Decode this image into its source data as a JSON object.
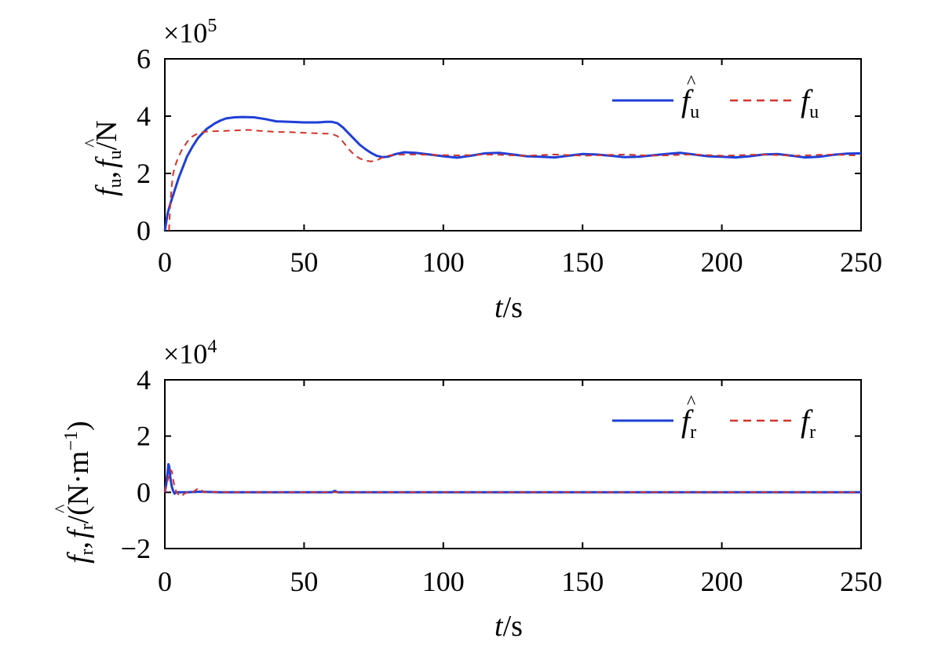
{
  "chart_data": [
    {
      "type": "line",
      "multiplier_base": "×10",
      "multiplier_exp": "5",
      "xlabel_var": "t",
      "xlabel_unit": "/s",
      "ylabel": {
        "f1": "f",
        "s1": "u",
        "comma": ",",
        "f2": "f",
        "s2": "u",
        "unit": "/N"
      },
      "xlim": [
        0,
        250
      ],
      "ylim": [
        0,
        6
      ],
      "xticks": [
        "0",
        "50",
        "100",
        "150",
        "200",
        "250"
      ],
      "yticks": [
        "0",
        "2",
        "4",
        "6"
      ],
      "xtick_values": [
        0,
        50,
        100,
        150,
        200,
        250
      ],
      "ytick_values": [
        0,
        2,
        4,
        6
      ],
      "legend_position": "top-right",
      "legend": [
        {
          "name": "f",
          "sub": "u",
          "hat": "^",
          "style": "solid",
          "color": "#1f3fd8"
        },
        {
          "name": "f",
          "sub": "u",
          "hat": "",
          "style": "dashed",
          "color": "#d2332b"
        }
      ],
      "series": [
        {
          "name": "f̂u",
          "color": "#1f3fd8",
          "style": "solid",
          "x": [
            0,
            1,
            2,
            3,
            4,
            5,
            6,
            8,
            10,
            12,
            15,
            18,
            20,
            22,
            25,
            28,
            32,
            36,
            40,
            45,
            50,
            55,
            58,
            60,
            62,
            64,
            66,
            68,
            70,
            72,
            74,
            76,
            78,
            80,
            83,
            86,
            90,
            95,
            100,
            105,
            110,
            115,
            120,
            125,
            130,
            135,
            140,
            145,
            150,
            155,
            160,
            165,
            170,
            175,
            180,
            185,
            190,
            195,
            200,
            205,
            210,
            215,
            220,
            225,
            230,
            235,
            240,
            245,
            250
          ],
          "y": [
            0.0,
            0.6,
            0.95,
            1.25,
            1.55,
            1.85,
            2.1,
            2.6,
            2.95,
            3.25,
            3.55,
            3.75,
            3.85,
            3.92,
            3.96,
            3.97,
            3.96,
            3.9,
            3.82,
            3.8,
            3.78,
            3.78,
            3.8,
            3.8,
            3.75,
            3.6,
            3.4,
            3.2,
            3.0,
            2.85,
            2.72,
            2.62,
            2.57,
            2.58,
            2.68,
            2.74,
            2.72,
            2.66,
            2.6,
            2.55,
            2.62,
            2.7,
            2.72,
            2.66,
            2.6,
            2.58,
            2.56,
            2.62,
            2.68,
            2.66,
            2.62,
            2.57,
            2.58,
            2.63,
            2.68,
            2.72,
            2.66,
            2.6,
            2.58,
            2.56,
            2.6,
            2.66,
            2.68,
            2.62,
            2.56,
            2.58,
            2.65,
            2.69,
            2.7
          ]
        },
        {
          "name": "fu",
          "color": "#d2332b",
          "style": "dashed",
          "x": [
            1.5,
            2,
            2.5,
            3,
            4,
            5,
            6,
            8,
            10,
            12,
            14,
            16,
            20,
            25,
            30,
            35,
            40,
            45,
            50,
            55,
            60,
            62,
            64,
            66,
            68,
            70,
            72,
            74,
            76,
            78,
            80,
            83,
            86,
            90,
            95,
            100,
            105,
            110,
            115,
            120,
            125,
            130,
            135,
            140,
            145,
            150,
            155,
            160,
            165,
            170,
            175,
            180,
            185,
            190,
            195,
            200,
            205,
            210,
            215,
            220,
            225,
            230,
            235,
            240,
            245,
            250
          ],
          "y": [
            0.0,
            1.0,
            1.6,
            2.0,
            2.35,
            2.6,
            2.8,
            3.1,
            3.3,
            3.4,
            3.45,
            3.47,
            3.48,
            3.5,
            3.52,
            3.48,
            3.45,
            3.44,
            3.42,
            3.4,
            3.38,
            3.3,
            3.1,
            2.85,
            2.65,
            2.52,
            2.45,
            2.42,
            2.45,
            2.55,
            2.62,
            2.65,
            2.66,
            2.66,
            2.65,
            2.64,
            2.63,
            2.64,
            2.66,
            2.65,
            2.63,
            2.62,
            2.64,
            2.66,
            2.64,
            2.62,
            2.63,
            2.65,
            2.66,
            2.64,
            2.62,
            2.63,
            2.65,
            2.66,
            2.64,
            2.62,
            2.63,
            2.65,
            2.66,
            2.64,
            2.62,
            2.63,
            2.65,
            2.66,
            2.64,
            2.62
          ]
        }
      ]
    },
    {
      "type": "line",
      "multiplier_base": "×10",
      "multiplier_exp": "4",
      "xlabel_var": "t",
      "xlabel_unit": "/s",
      "ylabel": {
        "f1": "f",
        "s1": "r",
        "comma": ",",
        "f2": "f",
        "s2": "r",
        "unit": "/(N·m",
        "sup": "−1",
        "close": ")"
      },
      "xlim": [
        0,
        250
      ],
      "ylim": [
        -2,
        4
      ],
      "xticks": [
        "0",
        "50",
        "100",
        "150",
        "200",
        "250"
      ],
      "yticks": [
        "−2",
        "0",
        "2",
        "4"
      ],
      "xtick_values": [
        0,
        50,
        100,
        150,
        200,
        250
      ],
      "ytick_values": [
        -2,
        0,
        2,
        4
      ],
      "legend_position": "top-right",
      "legend": [
        {
          "name": "f",
          "sub": "r",
          "hat": "^",
          "style": "solid",
          "color": "#1f3fd8"
        },
        {
          "name": "f",
          "sub": "r",
          "hat": "",
          "style": "dashed",
          "color": "#d2332b"
        }
      ],
      "series": [
        {
          "name": "f̂r",
          "color": "#1f3fd8",
          "style": "solid",
          "x": [
            0,
            0.5,
            1,
            1.3,
            1.6,
            2,
            2.5,
            3,
            3.5,
            4,
            5,
            6,
            8,
            12,
            20,
            40,
            60,
            61,
            62,
            63,
            80,
            100,
            120,
            150,
            200,
            250
          ],
          "y": [
            0.0,
            0.3,
            0.7,
            1.0,
            0.9,
            0.5,
            0.2,
            0.05,
            -0.05,
            0.0,
            0.0,
            0.0,
            0.0,
            0.02,
            0.0,
            0.0,
            0.0,
            0.05,
            0.0,
            0.0,
            0.0,
            0.0,
            0.0,
            0.0,
            0.0,
            0.0
          ]
        },
        {
          "name": "fr",
          "color": "#d2332b",
          "style": "dashed",
          "x": [
            0,
            0.5,
            1,
            1.5,
            2,
            2.5,
            3,
            3.5,
            4,
            5,
            6,
            7,
            8,
            10,
            12,
            13,
            14,
            16,
            20,
            40,
            60,
            100,
            150,
            200,
            250
          ],
          "y": [
            0.0,
            0.2,
            0.4,
            0.6,
            0.8,
            0.75,
            0.45,
            0.2,
            0.05,
            -0.1,
            -0.15,
            -0.05,
            0.0,
            0.0,
            0.15,
            0.1,
            0.0,
            0.0,
            0.0,
            0.0,
            0.0,
            0.0,
            0.0,
            0.0,
            0.0
          ]
        }
      ]
    }
  ]
}
